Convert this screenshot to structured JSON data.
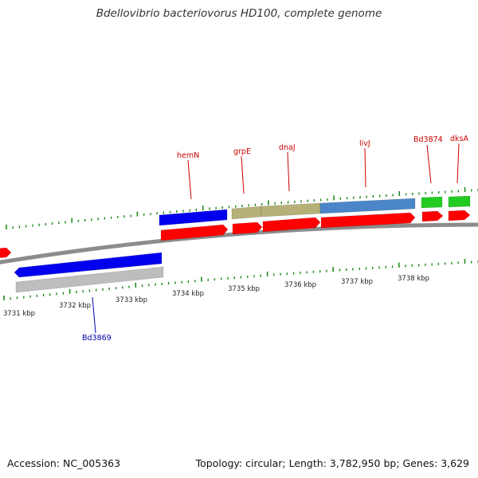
{
  "title": "Bdellovibrio bacteriovorus HD100, complete genome",
  "accession": "Accession: NC_005363",
  "summary": "Topology: circular; Length: 3,782,950 bp; Genes: 3,629",
  "colors": {
    "backbone": "#8c8c8c",
    "cds": "#ff0000",
    "forward_label": "#cc0000",
    "reverse_label": "#0000aa",
    "tick": "#1d8a1d",
    "cog_blue": "#0000ee",
    "cog_khaki": "#b5b078",
    "cog_steel": "#4a86c8",
    "cog_green": "#22cc22",
    "cog_grey": "#bdbdbd"
  },
  "kbp_labels": [
    "3731 kbp",
    "3732 kbp",
    "3733 kbp",
    "3734 kbp",
    "3735 kbp",
    "3736 kbp",
    "3737 kbp",
    "3738 kbp"
  ],
  "forward_genes": [
    "hemN",
    "grpE",
    "dnaJ",
    "livJ",
    "Bd3874",
    "dksA"
  ],
  "reverse_genes": [
    "Bd3869"
  ]
}
